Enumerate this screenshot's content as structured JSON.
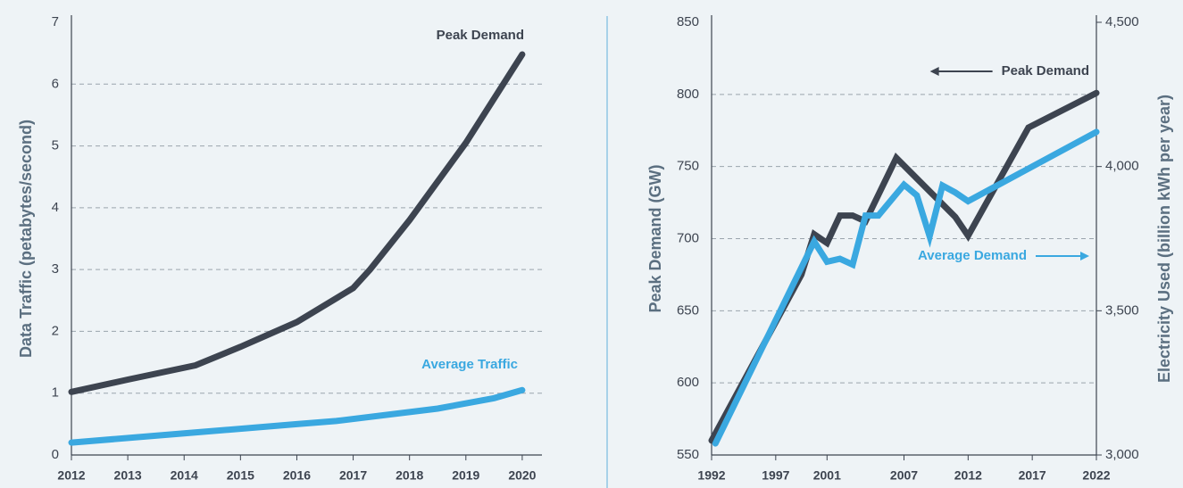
{
  "chart_data": [
    {
      "type": "line",
      "y_label": "Data Traffic (petabytes/second)",
      "xlim": [
        2012,
        2020.35
      ],
      "xticks": [
        2012,
        2013,
        2014,
        2015,
        2016,
        2017,
        2018,
        2019,
        2020
      ],
      "ylim": [
        0,
        7
      ],
      "yticks": [
        0,
        1,
        2,
        3,
        4,
        5,
        6,
        7
      ],
      "grid": true,
      "series": [
        {
          "name": "Peak Demand",
          "color": "#3d4450",
          "x": [
            2012,
            2013,
            2014.2,
            2015,
            2016,
            2017,
            2017.3,
            2018,
            2019,
            2020
          ],
          "values": [
            1.02,
            1.22,
            1.45,
            1.75,
            2.15,
            2.7,
            3.0,
            3.8,
            5.05,
            6.48
          ]
        },
        {
          "name": "Average Traffic",
          "color": "#3aa8e0",
          "x": [
            2012,
            2014,
            2016,
            2016.7,
            2018.5,
            2019.5,
            2020
          ],
          "values": [
            0.2,
            0.35,
            0.5,
            0.55,
            0.75,
            0.92,
            1.05
          ]
        }
      ]
    },
    {
      "type": "line",
      "y_label": "Peak Demand (GW)",
      "y2_label": "Electricity Used (billion kWh per year)",
      "xlim": [
        1992,
        2022
      ],
      "xticks": [
        1992,
        1997,
        2001,
        2007,
        2012,
        2017,
        2022
      ],
      "ylim": [
        550,
        850
      ],
      "yticks": [
        550,
        600,
        650,
        700,
        750,
        800,
        850
      ],
      "y2lim": [
        3000,
        4500
      ],
      "y2ticks": [
        {
          "value": 3000,
          "label": "3,000"
        },
        {
          "value": 3500,
          "label": "3,500"
        },
        {
          "value": 4000,
          "label": "4,000"
        },
        {
          "value": 4500,
          "label": "4,500"
        }
      ],
      "grid": true,
      "series": [
        {
          "name": "Peak Demand",
          "color": "#3d4450",
          "x": [
            1992,
            1999,
            2000,
            2001,
            2002,
            2003,
            2004,
            2006.4,
            2011,
            2012,
            2016.7,
            2022
          ],
          "values": [
            560,
            675,
            703,
            697,
            716,
            716,
            712,
            756,
            715,
            702,
            777,
            801
          ]
        },
        {
          "name": "Average Demand",
          "color": "#3aa8e0",
          "axis": "y2",
          "x": [
            1992.3,
            2000,
            2001,
            2002,
            2003,
            2004,
            2005,
            2007,
            2008,
            2009,
            2010,
            2011,
            2012,
            2017,
            2022
          ],
          "values": [
            3040,
            3740,
            3670,
            3680,
            3660,
            3830,
            3830,
            3937,
            3900,
            3758,
            3934,
            3910,
            3880,
            4000,
            4120
          ]
        }
      ]
    }
  ]
}
